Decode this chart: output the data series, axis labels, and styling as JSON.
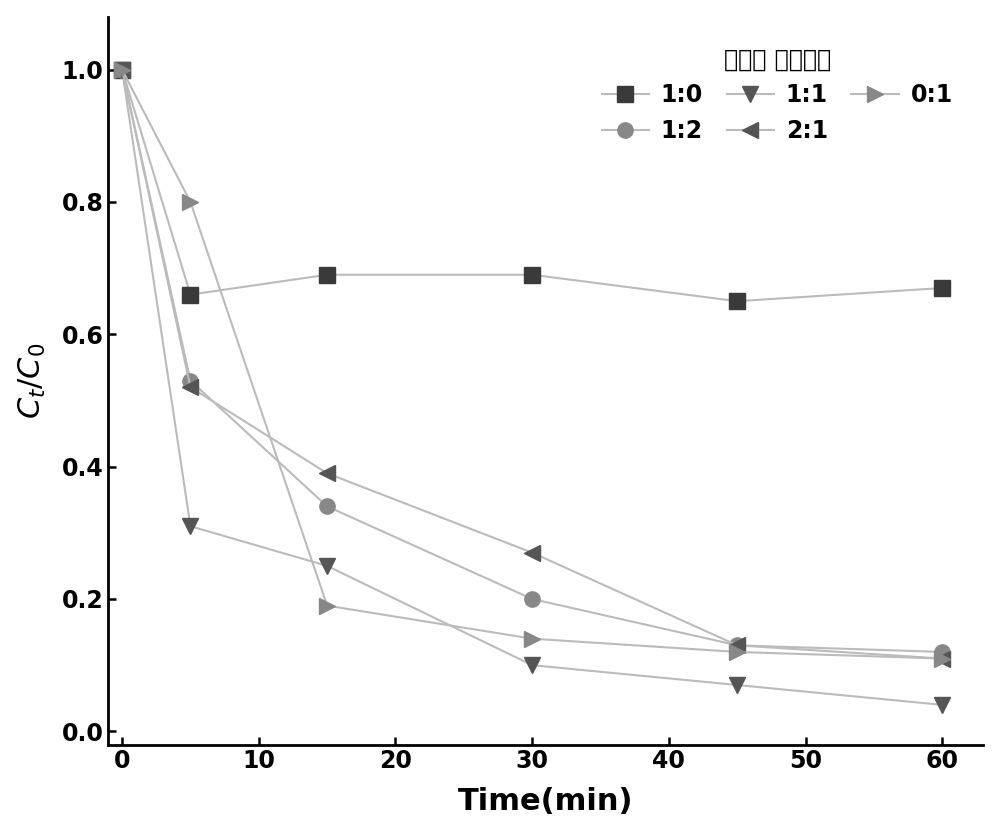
{
  "x": [
    0,
    5,
    15,
    30,
    45,
    60
  ],
  "series_order": [
    "1:0",
    "1:2",
    "1:1",
    "2:1",
    "0:1"
  ],
  "series": {
    "1:0": [
      1.0,
      0.66,
      0.69,
      0.69,
      0.65,
      0.67
    ],
    "1:2": [
      1.0,
      0.53,
      0.34,
      0.2,
      0.13,
      0.12
    ],
    "1:1": [
      1.0,
      0.31,
      0.25,
      0.1,
      0.07,
      0.04
    ],
    "2:1": [
      1.0,
      0.52,
      0.39,
      0.27,
      0.13,
      0.11
    ],
    "0:1": [
      1.0,
      0.8,
      0.19,
      0.14,
      0.12,
      0.11
    ]
  },
  "marker_colors": {
    "1:0": "#3a3a3a",
    "1:2": "#888888",
    "1:1": "#555555",
    "2:1": "#555555",
    "0:1": "#888888"
  },
  "line_colors": {
    "1:0": "#bbbbbb",
    "1:2": "#bbbbbb",
    "1:1": "#bbbbbb",
    "2:1": "#bbbbbb",
    "0:1": "#bbbbbb"
  },
  "markers": {
    "1:0": "s",
    "1:2": "o",
    "1:1": "v",
    "2:1": "<",
    "0:1": ">"
  },
  "xlabel": "Time(min)",
  "legend_title": "赤泥： 造纸污泥",
  "xlim": [
    -1,
    63
  ],
  "ylim": [
    -0.02,
    1.08
  ],
  "xticks": [
    0,
    10,
    20,
    30,
    40,
    50,
    60
  ],
  "yticks": [
    0.0,
    0.2,
    0.4,
    0.6,
    0.8,
    1.0
  ],
  "markersize": 11,
  "linewidth": 1.5
}
